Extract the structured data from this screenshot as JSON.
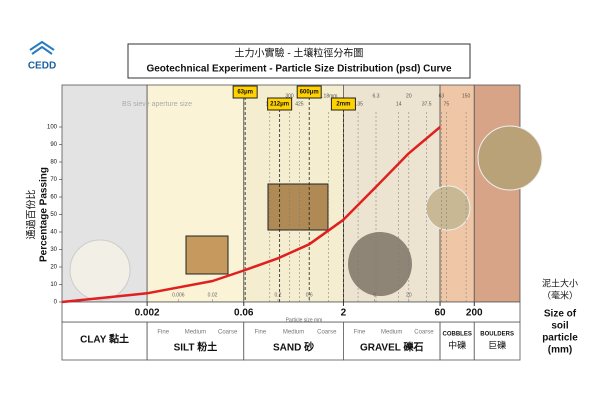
{
  "header": {
    "logo": "CEDD",
    "title_zh": "土力小實驗 - 土壤粒徑分布圖",
    "title_en": "Geotechnical Experiment - Particle Size Distribution (psd) Curve"
  },
  "chart_data": {
    "type": "line",
    "log_x": true,
    "x": [
      0.0001,
      0.002,
      0.02,
      0.06,
      0.2,
      0.6,
      2,
      6,
      20,
      60
    ],
    "series": [
      {
        "color": "#e02020",
        "values": [
          0,
          5,
          12,
          18,
          25,
          33,
          47,
          65,
          85,
          100
        ]
      }
    ],
    "xlim": [
      0.0001,
      1000
    ],
    "ylim": [
      0,
      100
    ],
    "yticks": [
      0,
      10,
      20,
      30,
      40,
      50,
      60,
      70,
      80,
      90,
      100
    ],
    "xticks": [
      0.002,
      0.06,
      2,
      60,
      200
    ],
    "minor_xticks": [
      0.006,
      0.02,
      0.2,
      0.6,
      6,
      20
    ],
    "y_label": "Percentage Passing",
    "y_label_zh": "通過百份比",
    "x_label_zh": [
      "泥土大小",
      "（毫米）"
    ],
    "x_label": [
      "Size of",
      "soil",
      "particle",
      "(mm)"
    ],
    "particle_label": "Particle size mm",
    "sieve_label": "BS sieve aperture size",
    "sieve_boxes": [
      {
        "value": 0.063,
        "label": "63μm"
      },
      {
        "value": 0.212,
        "label": "212μm"
      },
      {
        "value": 0.6,
        "label": "600μm"
      },
      {
        "value": 2,
        "label": "2mm"
      }
    ],
    "sieve_marks": [
      {
        "value": 0.15,
        "label": "150"
      },
      {
        "value": 0.3,
        "label": "300"
      },
      {
        "value": 0.425,
        "label": "425"
      },
      {
        "value": 1.18,
        "label": "1.18mm"
      },
      {
        "value": 3.35,
        "label": "3.35"
      },
      {
        "value": 6.3,
        "label": "6.3"
      },
      {
        "value": 14,
        "label": "14"
      },
      {
        "value": 20,
        "label": "20"
      },
      {
        "value": 37.5,
        "label": "37.5"
      },
      {
        "value": 63,
        "label": "63"
      },
      {
        "value": 75,
        "label": "75"
      },
      {
        "value": 150,
        "label": "150"
      }
    ],
    "classes": [
      {
        "name": "CLAY 黏土"
      },
      {
        "name": "SILT 粉土",
        "sub": [
          "Fine",
          "Medium",
          "Coarse"
        ]
      },
      {
        "name": "SAND 砂",
        "sub": [
          "Fine",
          "Medium",
          "Coarse"
        ]
      },
      {
        "name": "GRAVEL 礫石",
        "sub": [
          "Fine",
          "Medium",
          "Coarse"
        ]
      },
      {
        "name": "COBBLES",
        "name_zh": "中礫"
      },
      {
        "name": "BOULDERS",
        "name_zh": "巨礫"
      }
    ]
  }
}
